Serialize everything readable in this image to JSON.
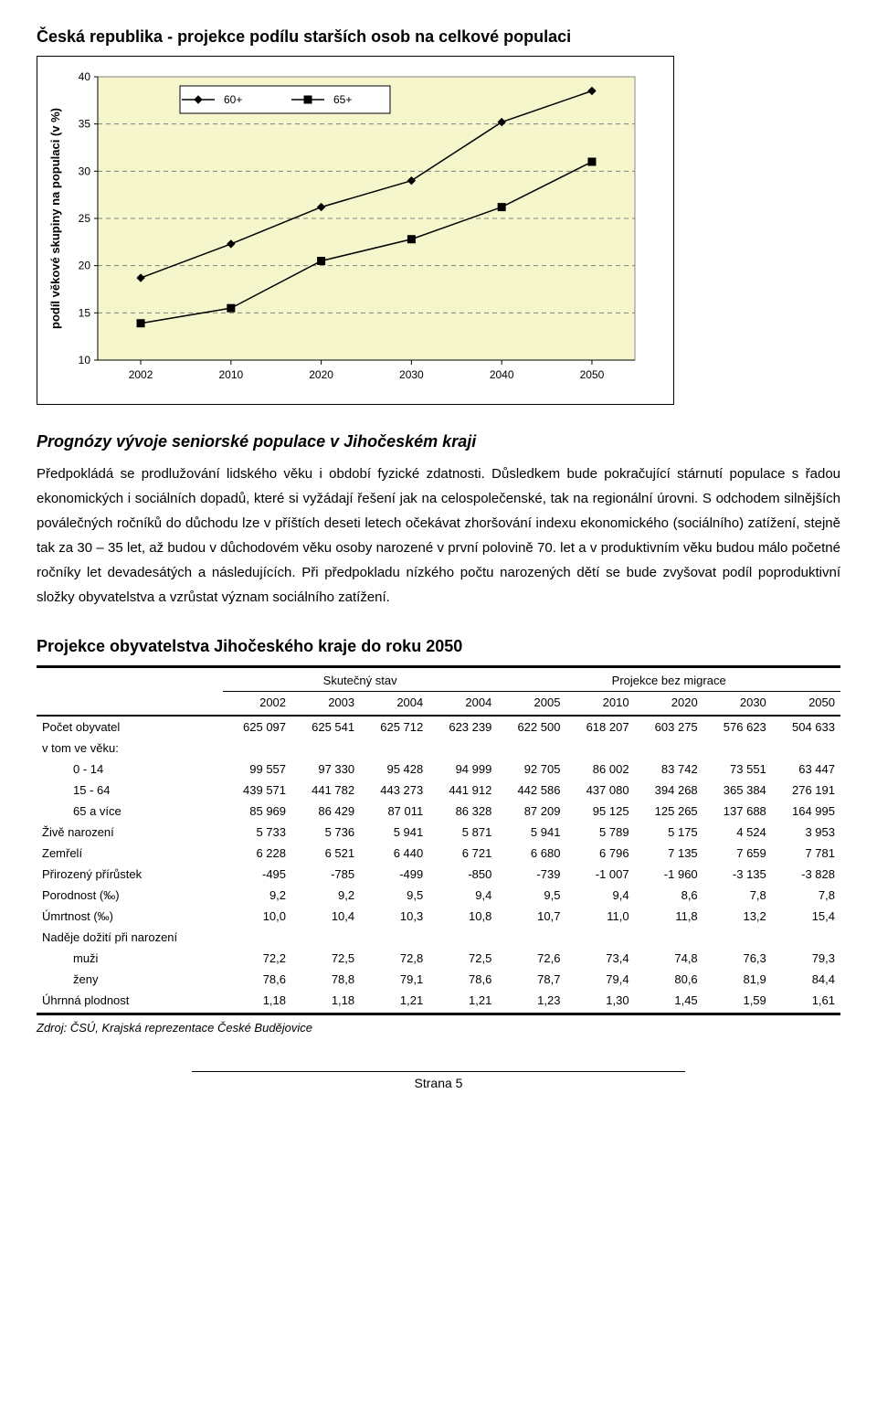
{
  "chart": {
    "title": "Česká republika - projekce podílu starších osob na celkové populaci",
    "ylabel": "podíl věkové skupiny na populaci (v %)",
    "ylim": [
      10,
      40
    ],
    "ytick_step": 5,
    "background_color": "#f6f6cc",
    "grid_color": "#808080",
    "categories": [
      "2002",
      "2010",
      "2020",
      "2030",
      "2040",
      "2050"
    ],
    "series": [
      {
        "name": "60+",
        "marker": "diamond",
        "color": "#000000",
        "values": [
          18.7,
          22.3,
          26.2,
          29.0,
          35.2,
          38.5
        ]
      },
      {
        "name": "65+",
        "marker": "square",
        "color": "#000000",
        "values": [
          13.9,
          15.5,
          20.5,
          22.8,
          26.2,
          31.0
        ]
      }
    ],
    "line_width": 1.5,
    "marker_size": 8
  },
  "prose": {
    "subtitle": "Prognózy vývoje seniorské populace v Jihočeském kraji",
    "p1": "Předpokládá se prodlužování lidského věku i období fyzické zdatnosti. Důsledkem bude pokračující stárnutí populace s řadou ekonomických i sociálních dopadů, které si vyžádají řešení jak na celospolečenské, tak na regionální úrovni. S odchodem silnějších poválečných ročníků do důchodu lze v příštích deseti letech očekávat zhoršování indexu ekonomického (sociálního) zatížení, stejně tak za 30 – 35 let, až budou v důchodovém věku osoby narozené v první polovině 70. let a v produktivním věku budou málo početné ročníky let devadesátých a následujících. Při předpokladu nízkého počtu narozených dětí se bude zvyšovat podíl poproduktivní složky obyvatelstva a vzrůstat význam sociálního zatížení."
  },
  "table": {
    "title": "Projekce obyvatelstva Jihočeského kraje do roku 2050",
    "group_headers": [
      "",
      "Skutečný stav",
      "Projekce bez migrace"
    ],
    "group_spans": [
      1,
      4,
      5
    ],
    "years": [
      "",
      "2002",
      "2003",
      "2004",
      "2004",
      "2005",
      "2010",
      "2020",
      "2030",
      "2050"
    ],
    "rows": [
      {
        "label": "Počet obyvatel",
        "indent": 0,
        "cells": [
          "625 097",
          "625 541",
          "625 712",
          "623 239",
          "622 500",
          "618 207",
          "603 275",
          "576 623",
          "504 633"
        ]
      },
      {
        "label": "v tom ve věku:",
        "indent": 0,
        "cells": [
          "",
          "",
          "",
          "",
          "",
          "",
          "",
          "",
          ""
        ]
      },
      {
        "label": "0 - 14",
        "indent": 2,
        "cells": [
          "99 557",
          "97 330",
          "95 428",
          "94 999",
          "92 705",
          "86 002",
          "83 742",
          "73 551",
          "63 447"
        ]
      },
      {
        "label": "15 - 64",
        "indent": 2,
        "cells": [
          "439 571",
          "441 782",
          "443 273",
          "441 912",
          "442 586",
          "437 080",
          "394 268",
          "365 384",
          "276 191"
        ]
      },
      {
        "label": "65 a více",
        "indent": 2,
        "cells": [
          "85 969",
          "86 429",
          "87 011",
          "86 328",
          "87 209",
          "95 125",
          "125 265",
          "137 688",
          "164 995"
        ]
      },
      {
        "label": "Živě narození",
        "indent": 0,
        "cells": [
          "5 733",
          "5 736",
          "5 941",
          "5 871",
          "5 941",
          "5 789",
          "5 175",
          "4 524",
          "3 953"
        ]
      },
      {
        "label": "Zemřelí",
        "indent": 0,
        "cells": [
          "6 228",
          "6 521",
          "6 440",
          "6 721",
          "6 680",
          "6 796",
          "7 135",
          "7 659",
          "7 781"
        ]
      },
      {
        "label": "Přirozený přírůstek",
        "indent": 0,
        "cells": [
          "-495",
          "-785",
          "-499",
          "-850",
          "-739",
          "-1 007",
          "-1 960",
          "-3 135",
          "-3 828"
        ]
      },
      {
        "label": "Porodnost (‰)",
        "indent": 0,
        "cells": [
          "9,2",
          "9,2",
          "9,5",
          "9,4",
          "9,5",
          "9,4",
          "8,6",
          "7,8",
          "7,8"
        ]
      },
      {
        "label": "Úmrtnost (‰)",
        "indent": 0,
        "cells": [
          "10,0",
          "10,4",
          "10,3",
          "10,8",
          "10,7",
          "11,0",
          "11,8",
          "13,2",
          "15,4"
        ]
      },
      {
        "label": "Naděje dožití při narození",
        "indent": 0,
        "cells": [
          "",
          "",
          "",
          "",
          "",
          "",
          "",
          "",
          ""
        ]
      },
      {
        "label": "muži",
        "indent": 2,
        "cells": [
          "72,2",
          "72,5",
          "72,8",
          "72,5",
          "72,6",
          "73,4",
          "74,8",
          "76,3",
          "79,3"
        ]
      },
      {
        "label": "ženy",
        "indent": 2,
        "cells": [
          "78,6",
          "78,8",
          "79,1",
          "78,6",
          "78,7",
          "79,4",
          "80,6",
          "81,9",
          "84,4"
        ]
      },
      {
        "label": "Úhrnná plodnost",
        "indent": 0,
        "cells": [
          "1,18",
          "1,18",
          "1,21",
          "1,21",
          "1,23",
          "1,30",
          "1,45",
          "1,59",
          "1,61"
        ]
      }
    ],
    "source": "Zdroj: ČSÚ, Krajská reprezentace České Budějovice"
  },
  "footer": "Strana 5"
}
